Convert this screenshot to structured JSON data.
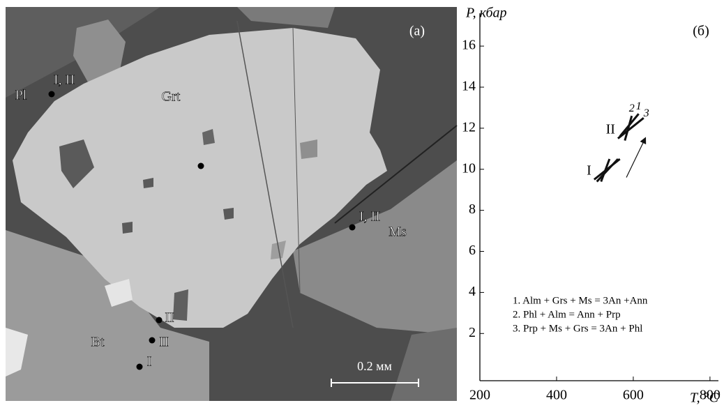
{
  "image": {
    "panel_label": "(a)",
    "labels": [
      "I, II",
      "Pl",
      "Grt",
      "I, II",
      "Ms",
      "II",
      "II",
      "I",
      "Bt"
    ],
    "scale_bar": "0.2 мм"
  },
  "chart_data": {
    "type": "line",
    "panel_label": "(б)",
    "y_label": "P, кбар",
    "x_label": "T, °C",
    "xlim": [
      200,
      822
    ],
    "ylim": [
      -0.3,
      17.6
    ],
    "xticks": [
      200,
      400,
      600,
      800
    ],
    "yticks": [
      2,
      4,
      6,
      8,
      10,
      12,
      14,
      16
    ],
    "color": "#111111",
    "groups": [
      {
        "label": "I",
        "lines": [
          {
            "x": [
              505,
              560
            ],
            "y": [
              9.4,
              10.5
            ]
          },
          {
            "x": [
              516,
              538
            ],
            "y": [
              9.4,
              10.5
            ]
          },
          {
            "x": [
              498,
              565
            ],
            "y": [
              9.5,
              10.5
            ]
          }
        ]
      },
      {
        "label": "II",
        "lines": [
          {
            "x": [
              578,
              596
            ],
            "y": [
              11.4,
              12.6
            ]
          },
          {
            "x": [
              565,
              614
            ],
            "y": [
              11.6,
              12.7
            ]
          },
          {
            "x": [
              560,
              627
            ],
            "y": [
              11.5,
              12.5
            ]
          }
        ]
      }
    ],
    "line_labels": [
      "2",
      "1",
      "3"
    ],
    "arrow": {
      "x": [
        582,
        631
      ],
      "y": [
        9.6,
        11.5
      ]
    },
    "notes": [
      "1. Alm + Grs + Ms = 3An +Ann",
      "2. Phl + Alm = Ann + Prp",
      "3. Prp + Ms + Grs = 3An + Phl"
    ]
  }
}
